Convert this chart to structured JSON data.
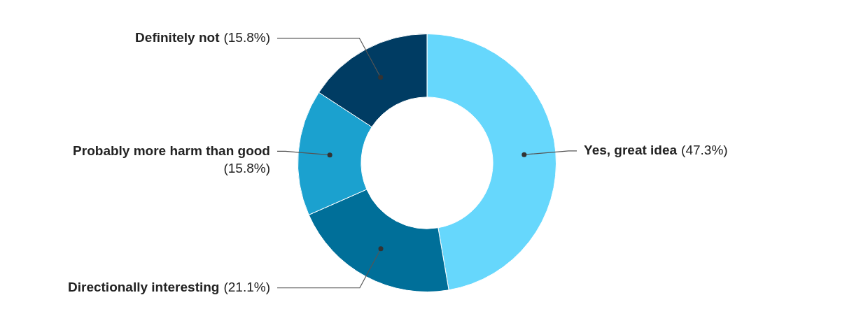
{
  "chart_data": {
    "type": "donut",
    "categories": [
      "Yes, great idea",
      "Directionally interesting",
      "Probably more harm than good",
      "Definitely not"
    ],
    "values": [
      47.3,
      21.1,
      15.8,
      15.8
    ],
    "value_labels": [
      "(47.3%)",
      "(21.1%)",
      "(15.8%)",
      "(15.8%)"
    ],
    "colors": [
      "#66d7fc",
      "#006f99",
      "#1ba1cf",
      "#003c63"
    ],
    "legend": false
  }
}
